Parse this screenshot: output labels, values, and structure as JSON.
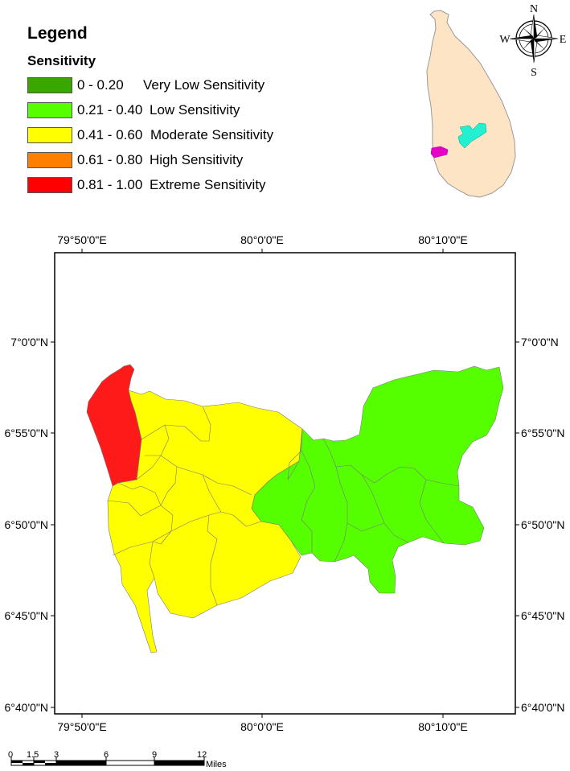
{
  "legend": {
    "title": "Legend",
    "subtitle": "Sensitivity",
    "items": [
      {
        "range": "0 - 0.20",
        "label": "Very Low Sensitivity",
        "color": "#38a800"
      },
      {
        "range": "0.21 - 0.40",
        "label": "Low Sensitivity",
        "color": "#55ff00"
      },
      {
        "range": "0.41 - 0.60",
        "label": "Moderate Sensitivity",
        "color": "#ffff00"
      },
      {
        "range": "0.61 - 0.80",
        "label": "High Sensitivity",
        "color": "#ff8000"
      },
      {
        "range": "0.81 - 1.00",
        "label": "Extreme Sensitivity",
        "color": "#ff0000"
      }
    ]
  },
  "locator": {
    "land_color": "#fde4c4",
    "highlight_colors": [
      "#22f0d0",
      "#e600c8"
    ]
  },
  "compass": {
    "n": "N",
    "s": "S",
    "e": "E",
    "w": "W"
  },
  "graticule": {
    "top_labels": [
      "79°50'0\"E",
      "80°0'0\"E",
      "80°10'0\"E"
    ],
    "bottom_labels": [
      "79°50'0\"E",
      "80°0'0\"E",
      "80°10'0\"E"
    ],
    "left_labels": [
      "7°0'0\"N",
      "6°55'0\"N",
      "6°50'0\"N",
      "6°45'0\"N",
      "6°40'0\"N"
    ],
    "right_labels": [
      "7°0'0\"N",
      "6°55'0\"N",
      "6°50'0\"N",
      "6°45'0\"N",
      "6°40'0\"N"
    ]
  },
  "scale_bar": {
    "ticks": [
      "0",
      "1.5",
      "3",
      "6",
      "9",
      "12"
    ],
    "unit": "Miles"
  }
}
